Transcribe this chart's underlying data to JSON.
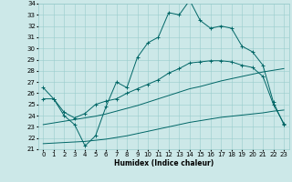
{
  "xlabel": "Humidex (Indice chaleur)",
  "bg_color": "#cce8e8",
  "grid_color": "#99cccc",
  "line_color": "#006666",
  "xlim": [
    -0.5,
    23.5
  ],
  "ylim": [
    21,
    34
  ],
  "xticks": [
    0,
    1,
    2,
    3,
    4,
    5,
    6,
    7,
    8,
    9,
    10,
    11,
    12,
    13,
    14,
    15,
    16,
    17,
    18,
    19,
    20,
    21,
    22,
    23
  ],
  "yticks": [
    21,
    22,
    23,
    24,
    25,
    26,
    27,
    28,
    29,
    30,
    31,
    32,
    33,
    34
  ],
  "line1_x": [
    0,
    1,
    2,
    3,
    4,
    5,
    6,
    7,
    8,
    9,
    10,
    11,
    12,
    13,
    14,
    15,
    16,
    17,
    18,
    19,
    20,
    21,
    22,
    23
  ],
  "line1_y": [
    26.5,
    25.5,
    24.0,
    23.2,
    21.3,
    22.2,
    24.8,
    27.0,
    26.5,
    29.2,
    30.5,
    31.0,
    33.2,
    33.0,
    34.3,
    32.5,
    31.8,
    32.0,
    31.8,
    30.2,
    29.7,
    28.5,
    25.2,
    23.2
  ],
  "line2_x": [
    0,
    1,
    2,
    3,
    4,
    5,
    6,
    7,
    8,
    9,
    10,
    11,
    12,
    13,
    14,
    15,
    16,
    17,
    18,
    19,
    20,
    21,
    22,
    23
  ],
  "line2_y": [
    21.5,
    21.55,
    21.6,
    21.65,
    21.7,
    21.8,
    21.9,
    22.05,
    22.2,
    22.4,
    22.6,
    22.8,
    23.0,
    23.2,
    23.4,
    23.55,
    23.7,
    23.85,
    23.95,
    24.05,
    24.15,
    24.25,
    24.4,
    24.5
  ],
  "line3_x": [
    0,
    1,
    2,
    3,
    4,
    5,
    6,
    7,
    8,
    9,
    10,
    11,
    12,
    13,
    14,
    15,
    16,
    17,
    18,
    19,
    20,
    21,
    22,
    23
  ],
  "line3_y": [
    23.2,
    23.35,
    23.5,
    23.65,
    23.8,
    23.95,
    24.15,
    24.4,
    24.65,
    24.9,
    25.2,
    25.5,
    25.8,
    26.1,
    26.4,
    26.6,
    26.85,
    27.1,
    27.3,
    27.5,
    27.7,
    27.9,
    28.05,
    28.2
  ],
  "line4_x": [
    0,
    1,
    2,
    3,
    4,
    5,
    6,
    7,
    8,
    9,
    10,
    11,
    12,
    13,
    14,
    15,
    16,
    17,
    18,
    19,
    20,
    21,
    22,
    23
  ],
  "line4_y": [
    25.5,
    25.5,
    24.3,
    23.8,
    24.2,
    25.0,
    25.3,
    25.5,
    26.0,
    26.4,
    26.8,
    27.2,
    27.8,
    28.2,
    28.7,
    28.8,
    28.9,
    28.9,
    28.8,
    28.5,
    28.3,
    27.5,
    25.0,
    23.3
  ],
  "marker": "+",
  "marker_size": 2.5,
  "lw": 0.7,
  "tick_fontsize": 5.0,
  "xlabel_fontsize": 5.5
}
